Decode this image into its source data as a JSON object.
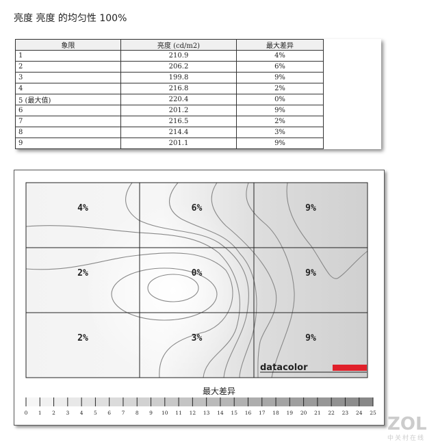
{
  "title": "亮度 亮度 的均匀性 100%",
  "table": {
    "headers": [
      "象限",
      "亮度 (cd/m2)",
      "最大差异"
    ],
    "rows": [
      [
        "1",
        "210.9",
        "4%"
      ],
      [
        "2",
        "206.2",
        "6%"
      ],
      [
        "3",
        "199.8",
        "9%"
      ],
      [
        "4",
        "216.8",
        "2%"
      ],
      [
        "5 (最大值)",
        "220.4",
        "0%"
      ],
      [
        "6",
        "201.2",
        "9%"
      ],
      [
        "7",
        "216.5",
        "2%"
      ],
      [
        "8",
        "214.4",
        "3%"
      ],
      [
        "9",
        "201.1",
        "9%"
      ]
    ]
  },
  "chart_data": {
    "type": "heatmap",
    "grid": [
      [
        "4%",
        "6%",
        "9%"
      ],
      [
        "2%",
        "0%",
        "9%"
      ],
      [
        "2%",
        "3%",
        "9%"
      ]
    ],
    "values": [
      [
        4,
        6,
        9
      ],
      [
        2,
        0,
        9
      ],
      [
        2,
        3,
        9
      ]
    ],
    "legend_title": "最大差异",
    "legend_ticks": [
      "0",
      "1",
      "2",
      "3",
      "4",
      "5",
      "6",
      "7",
      "8",
      "9",
      "10",
      "11",
      "12",
      "13",
      "14",
      "15",
      "16",
      "17",
      "18",
      "19",
      "20",
      "21",
      "22",
      "23",
      "24",
      "25"
    ],
    "legend_range": [
      0,
      25
    ],
    "logo": "datacolor",
    "colors": {
      "logo_red": "#e0202a",
      "scale_light": "#f4f4f4",
      "scale_dark": "#888888"
    }
  },
  "watermark": {
    "main": "ZOL",
    "sub": "中关村在线"
  }
}
